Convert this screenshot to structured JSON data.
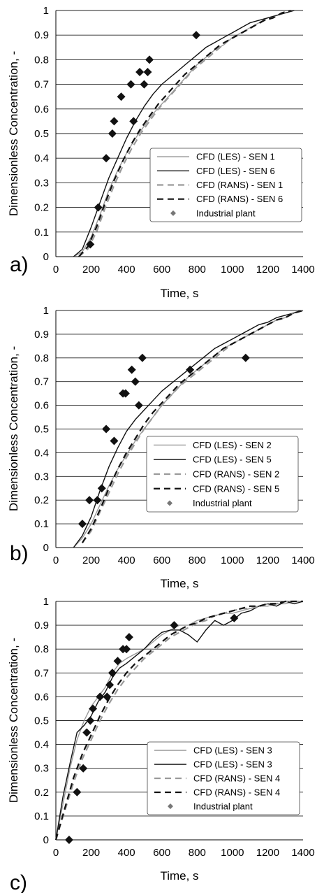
{
  "chart_data": [
    {
      "type": "line",
      "panel_label": "a)",
      "xlabel": "Time, s",
      "ylabel": "Dimensionless Concentration, -",
      "xlim": [
        0,
        1400
      ],
      "ylim": [
        0,
        1
      ],
      "xticks": [
        "0",
        "200",
        "400",
        "600",
        "800",
        "1000",
        "1200",
        "1400"
      ],
      "yticks": [
        "0",
        "0.1",
        "0.2",
        "0.3",
        "0.4",
        "0.5",
        "0.6",
        "0.7",
        "0.8",
        "0.9",
        "1"
      ],
      "grid": "horizontal",
      "legend_position": "lower-right",
      "series": [
        {
          "name": "CFD (LES) - SEN 1",
          "style": "solid",
          "color": "#9a9a9a",
          "x": [
            100,
            150,
            200,
            250,
            300,
            350,
            400,
            450,
            500,
            550,
            600,
            650,
            700,
            750,
            800,
            850,
            900,
            950,
            1000,
            1050,
            1100,
            1150,
            1200,
            1250,
            1300,
            1350
          ],
          "y": [
            0,
            0.02,
            0.08,
            0.17,
            0.27,
            0.35,
            0.42,
            0.48,
            0.53,
            0.58,
            0.62,
            0.66,
            0.7,
            0.74,
            0.78,
            0.81,
            0.84,
            0.86,
            0.89,
            0.91,
            0.93,
            0.95,
            0.97,
            0.98,
            0.99,
            1
          ]
        },
        {
          "name": "CFD (LES) - SEN 6",
          "style": "solid",
          "color": "#111111",
          "x": [
            100,
            150,
            200,
            250,
            300,
            350,
            400,
            450,
            500,
            550,
            600,
            650,
            700,
            750,
            800,
            850,
            900,
            950,
            1000,
            1050,
            1100,
            1150,
            1200,
            1250,
            1300,
            1350
          ],
          "y": [
            0,
            0.03,
            0.12,
            0.22,
            0.32,
            0.4,
            0.48,
            0.55,
            0.61,
            0.66,
            0.7,
            0.73,
            0.76,
            0.79,
            0.82,
            0.85,
            0.87,
            0.89,
            0.91,
            0.93,
            0.95,
            0.96,
            0.97,
            0.98,
            0.99,
            1
          ]
        },
        {
          "name": "CFD (RANS) - SEN 1",
          "style": "dashed",
          "color": "#9a9a9a",
          "x": [
            130,
            180,
            230,
            280,
            330,
            380,
            430,
            480,
            530,
            580,
            630,
            680,
            730,
            780,
            830,
            880,
            930,
            980,
            1030,
            1080,
            1130,
            1180,
            1230,
            1280,
            1330
          ],
          "y": [
            0,
            0.03,
            0.1,
            0.2,
            0.29,
            0.37,
            0.44,
            0.5,
            0.55,
            0.6,
            0.64,
            0.68,
            0.72,
            0.76,
            0.79,
            0.82,
            0.85,
            0.88,
            0.9,
            0.92,
            0.94,
            0.96,
            0.97,
            0.99,
            1
          ]
        },
        {
          "name": "CFD (RANS) - SEN 6",
          "style": "dashed",
          "color": "#111111",
          "x": [
            130,
            180,
            230,
            280,
            330,
            380,
            430,
            480,
            530,
            580,
            630,
            680,
            730,
            780,
            830,
            880,
            930,
            980,
            1030,
            1080,
            1130,
            1180,
            1230,
            1280,
            1330
          ],
          "y": [
            0,
            0.04,
            0.12,
            0.22,
            0.31,
            0.39,
            0.46,
            0.52,
            0.57,
            0.62,
            0.66,
            0.7,
            0.74,
            0.77,
            0.8,
            0.83,
            0.86,
            0.88,
            0.9,
            0.92,
            0.94,
            0.96,
            0.97,
            0.99,
            1
          ]
        },
        {
          "name": "Industrial plant",
          "style": "marker",
          "x": [
            195,
            240,
            285,
            320,
            330,
            370,
            425,
            440,
            475,
            500,
            520,
            530,
            795
          ],
          "y": [
            0.05,
            0.2,
            0.4,
            0.5,
            0.55,
            0.65,
            0.7,
            0.55,
            0.75,
            0.7,
            0.75,
            0.8,
            0.9
          ]
        }
      ]
    },
    {
      "type": "line",
      "panel_label": "b)",
      "xlabel": "Time, s",
      "ylabel": "Dimensionless Concentration, -",
      "xlim": [
        0,
        1400
      ],
      "ylim": [
        0,
        1
      ],
      "xticks": [
        "0",
        "200",
        "400",
        "600",
        "800",
        "1000",
        "1200",
        "1400"
      ],
      "yticks": [
        "0",
        "0.1",
        "0.2",
        "0.3",
        "0.4",
        "0.5",
        "0.6",
        "0.7",
        "0.8",
        "0.9",
        "1"
      ],
      "grid": "horizontal",
      "legend_position": "lower-right",
      "series": [
        {
          "name": "CFD (LES) - SEN 2",
          "style": "solid",
          "color": "#9a9a9a",
          "x": [
            100,
            150,
            200,
            250,
            300,
            350,
            400,
            450,
            500,
            550,
            600,
            650,
            700,
            750,
            800,
            850,
            900,
            950,
            1000,
            1050,
            1100,
            1150,
            1200,
            1250,
            1300,
            1350,
            1400
          ],
          "y": [
            0,
            0.04,
            0.1,
            0.18,
            0.26,
            0.33,
            0.39,
            0.45,
            0.5,
            0.55,
            0.6,
            0.64,
            0.68,
            0.72,
            0.75,
            0.78,
            0.81,
            0.84,
            0.86,
            0.88,
            0.9,
            0.92,
            0.94,
            0.96,
            0.97,
            0.99,
            1
          ]
        },
        {
          "name": "CFD (LES) - SEN 5",
          "style": "solid",
          "color": "#111111",
          "x": [
            100,
            150,
            200,
            250,
            300,
            350,
            400,
            450,
            500,
            550,
            600,
            650,
            700,
            750,
            800,
            850,
            900,
            950,
            1000,
            1050,
            1100,
            1150,
            1200,
            1250,
            1300,
            1350,
            1400
          ],
          "y": [
            0,
            0.05,
            0.13,
            0.24,
            0.34,
            0.42,
            0.49,
            0.54,
            0.58,
            0.62,
            0.66,
            0.69,
            0.72,
            0.75,
            0.78,
            0.81,
            0.84,
            0.86,
            0.88,
            0.9,
            0.92,
            0.94,
            0.95,
            0.97,
            0.98,
            0.99,
            1
          ]
        },
        {
          "name": "CFD (RANS) - SEN 2",
          "style": "dashed",
          "color": "#9a9a9a",
          "x": [
            150,
            200,
            250,
            300,
            350,
            400,
            450,
            500,
            550,
            600,
            650,
            700,
            750,
            800,
            850,
            900,
            950,
            1000,
            1050,
            1100,
            1150,
            1200,
            1250,
            1300,
            1350,
            1400
          ],
          "y": [
            0.02,
            0.07,
            0.15,
            0.23,
            0.31,
            0.38,
            0.44,
            0.5,
            0.55,
            0.6,
            0.64,
            0.68,
            0.71,
            0.74,
            0.77,
            0.8,
            0.83,
            0.86,
            0.88,
            0.9,
            0.92,
            0.94,
            0.96,
            0.97,
            0.99,
            1
          ]
        },
        {
          "name": "CFD (RANS) - SEN 5",
          "style": "dashed",
          "color": "#111111",
          "x": [
            150,
            200,
            250,
            300,
            350,
            400,
            450,
            500,
            550,
            600,
            650,
            700,
            750,
            800,
            850,
            900,
            950,
            1000,
            1050,
            1100,
            1150,
            1200,
            1250,
            1300,
            1350,
            1400
          ],
          "y": [
            0.02,
            0.08,
            0.16,
            0.25,
            0.33,
            0.4,
            0.46,
            0.52,
            0.57,
            0.61,
            0.65,
            0.69,
            0.72,
            0.75,
            0.78,
            0.81,
            0.84,
            0.86,
            0.88,
            0.9,
            0.92,
            0.94,
            0.96,
            0.97,
            0.99,
            1
          ]
        },
        {
          "name": "Industrial plant",
          "style": "marker",
          "x": [
            150,
            190,
            235,
            260,
            285,
            330,
            380,
            395,
            430,
            450,
            470,
            490,
            760,
            1075
          ],
          "y": [
            0.1,
            0.2,
            0.2,
            0.25,
            0.5,
            0.45,
            0.65,
            0.65,
            0.75,
            0.7,
            0.6,
            0.8,
            0.75,
            0.8
          ]
        }
      ]
    },
    {
      "type": "line",
      "panel_label": "c)",
      "xlabel": "Time, s",
      "ylabel": "Dimensionless Concentration, -",
      "xlim": [
        0,
        1400
      ],
      "ylim": [
        0,
        1
      ],
      "xticks": [
        "0",
        "200",
        "400",
        "600",
        "800",
        "1000",
        "1200",
        "1400"
      ],
      "yticks": [
        "0",
        "0.1",
        "0.2",
        "0.3",
        "0.4",
        "0.5",
        "0.6",
        "0.7",
        "0.8",
        "0.9",
        "1"
      ],
      "grid": "horizontal",
      "legend_position": "lower-right",
      "series": [
        {
          "name": "CFD (LES) - SEN 3",
          "style": "solid",
          "color": "#9a9a9a",
          "x": [
            0,
            40,
            80,
            120,
            160,
            200,
            240,
            280,
            320,
            360,
            400,
            450,
            500,
            550,
            600,
            650,
            700,
            750,
            800,
            850,
            900,
            950,
            1000,
            1050,
            1100,
            1150,
            1200,
            1250,
            1300,
            1350,
            1400
          ],
          "y": [
            0,
            0.15,
            0.3,
            0.42,
            0.5,
            0.56,
            0.6,
            0.64,
            0.7,
            0.74,
            0.76,
            0.78,
            0.8,
            0.83,
            0.86,
            0.88,
            0.9,
            0.9,
            0.92,
            0.93,
            0.94,
            0.95,
            0.95,
            0.96,
            0.97,
            0.98,
            0.98,
            0.99,
            0.99,
            1,
            1
          ]
        },
        {
          "name": "CFD (LES) - SEN 3",
          "style": "solid",
          "color": "#111111",
          "x": [
            0,
            40,
            80,
            120,
            160,
            200,
            240,
            280,
            320,
            360,
            400,
            450,
            500,
            550,
            600,
            650,
            700,
            750,
            800,
            850,
            900,
            950,
            1000,
            1050,
            1100,
            1150,
            1200,
            1250,
            1300,
            1350,
            1400
          ],
          "y": [
            0,
            0.18,
            0.32,
            0.45,
            0.48,
            0.52,
            0.58,
            0.62,
            0.68,
            0.72,
            0.74,
            0.77,
            0.8,
            0.84,
            0.87,
            0.88,
            0.88,
            0.86,
            0.83,
            0.88,
            0.92,
            0.9,
            0.92,
            0.95,
            0.96,
            0.98,
            0.99,
            0.98,
            1,
            0.99,
            1
          ]
        },
        {
          "name": "CFD (RANS) - SEN 4",
          "style": "dashed",
          "color": "#9a9a9a",
          "x": [
            0,
            50,
            100,
            150,
            200,
            250,
            300,
            350,
            400,
            450,
            500,
            550,
            600,
            650,
            700,
            750,
            800,
            850,
            900,
            950,
            1000,
            1050,
            1100,
            1150,
            1200,
            1250,
            1300,
            1350,
            1400
          ],
          "y": [
            0,
            0.12,
            0.24,
            0.34,
            0.42,
            0.5,
            0.57,
            0.63,
            0.68,
            0.72,
            0.76,
            0.79,
            0.82,
            0.85,
            0.87,
            0.89,
            0.91,
            0.92,
            0.94,
            0.95,
            0.96,
            0.97,
            0.97,
            0.98,
            0.99,
            0.99,
            1,
            1,
            1
          ]
        },
        {
          "name": "CFD (RANS) - SEN 4",
          "style": "dashed",
          "color": "#111111",
          "x": [
            0,
            50,
            100,
            150,
            200,
            250,
            300,
            350,
            400,
            450,
            500,
            550,
            600,
            650,
            700,
            750,
            800,
            850,
            900,
            950,
            1000,
            1050,
            1100,
            1150,
            1200,
            1250,
            1300,
            1350,
            1400
          ],
          "y": [
            0,
            0.13,
            0.26,
            0.36,
            0.44,
            0.52,
            0.59,
            0.65,
            0.7,
            0.74,
            0.77,
            0.8,
            0.83,
            0.86,
            0.88,
            0.9,
            0.91,
            0.93,
            0.94,
            0.95,
            0.96,
            0.97,
            0.98,
            0.98,
            0.99,
            0.99,
            1,
            1,
            1
          ]
        },
        {
          "name": "Industrial plant",
          "style": "marker",
          "x": [
            75,
            120,
            155,
            175,
            195,
            210,
            250,
            290,
            305,
            320,
            350,
            380,
            400,
            415,
            670,
            1010
          ],
          "y": [
            0,
            0.2,
            0.3,
            0.45,
            0.5,
            0.55,
            0.6,
            0.6,
            0.65,
            0.7,
            0.75,
            0.8,
            0.8,
            0.85,
            0.9,
            0.93
          ]
        }
      ]
    }
  ]
}
